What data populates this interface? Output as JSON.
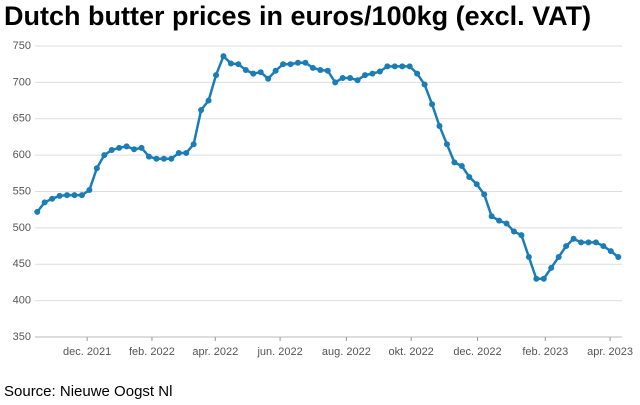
{
  "chart_data": {
    "type": "line",
    "title": "Dutch butter prices in euros/100kg (excl. VAT)",
    "source": "Source: Nieuwe Oogst Nl",
    "x": [
      0,
      1,
      2,
      3,
      4,
      5,
      6,
      7,
      8,
      9,
      10,
      11,
      12,
      13,
      14,
      15,
      16,
      17,
      18,
      19,
      20,
      21,
      22,
      23,
      24,
      25,
      26,
      27,
      28,
      29,
      30,
      31,
      32,
      33,
      34,
      35,
      36,
      37,
      38,
      39,
      40,
      41,
      42,
      43,
      44,
      45,
      46,
      47,
      48,
      49,
      50,
      51,
      52,
      53,
      54,
      55,
      56,
      57,
      58,
      59,
      60,
      61,
      62,
      63,
      64,
      65,
      66,
      67,
      68,
      69,
      70,
      71,
      72,
      73,
      74,
      75,
      76,
      77,
      78
    ],
    "series": [
      {
        "color": "#1a7db6",
        "values": [
          522,
          535,
          540,
          544,
          545,
          545,
          545,
          552,
          582,
          600,
          607,
          610,
          612,
          608,
          610,
          598,
          595,
          595,
          595,
          603,
          603,
          615,
          662,
          675,
          710,
          736,
          726,
          725,
          717,
          712,
          714,
          705,
          716,
          725,
          725,
          727,
          727,
          720,
          717,
          716,
          700,
          706,
          706,
          703,
          710,
          712,
          715,
          722,
          722,
          722,
          722,
          712,
          697,
          670,
          640,
          615,
          590,
          585,
          570,
          560,
          546,
          516,
          510,
          506,
          495,
          490,
          460,
          430,
          430,
          445,
          460,
          475,
          485,
          480,
          480,
          480,
          475,
          468,
          460
        ]
      }
    ],
    "xlim": [
      -0.3,
      78.5
    ],
    "xticks": [
      {
        "value": 6.7,
        "label": "dec. 2021"
      },
      {
        "value": 15.4,
        "label": "feb. 2022"
      },
      {
        "value": 23.9,
        "label": "apr. 2022"
      },
      {
        "value": 32.6,
        "label": "jun. 2022"
      },
      {
        "value": 41.5,
        "label": "aug. 2022"
      },
      {
        "value": 50.2,
        "label": "okt. 2022"
      },
      {
        "value": 59.1,
        "label": "dec. 2022"
      },
      {
        "value": 68.2,
        "label": "feb. 2023"
      },
      {
        "value": 76.9,
        "label": "apr. 2023"
      }
    ],
    "ylim": [
      350,
      750
    ],
    "yticks": [
      350,
      400,
      450,
      500,
      550,
      600,
      650,
      700,
      750
    ],
    "grid": true
  }
}
